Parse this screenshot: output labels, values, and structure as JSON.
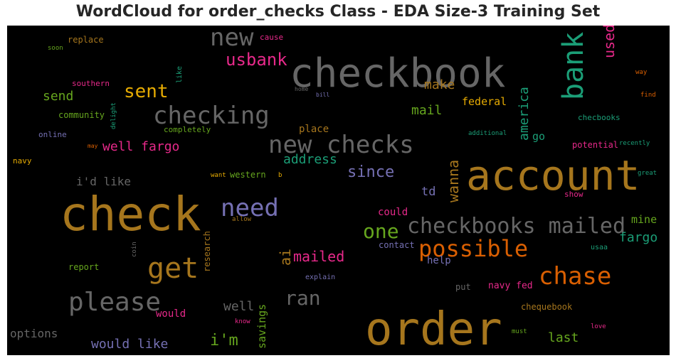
{
  "chart_data": {
    "type": "wordcloud",
    "title": "WordCloud for order_checks Class - EDA Size-3 Training Set",
    "words": [
      {
        "text": "checkbook",
        "color": "#666666"
      },
      {
        "text": "new",
        "color": "#666666"
      },
      {
        "text": "bank",
        "color": "#1b9e77"
      },
      {
        "text": "used",
        "color": "#e7298a"
      },
      {
        "text": "usbank",
        "color": "#e7298a"
      },
      {
        "text": "replace",
        "color": "#a6761d"
      },
      {
        "text": "cause",
        "color": "#e7298a"
      },
      {
        "text": "soon",
        "color": "#66a61e"
      },
      {
        "text": "way",
        "color": "#d95f02"
      },
      {
        "text": "like",
        "color": "#1b9e77"
      },
      {
        "text": "southern",
        "color": "#e7298a"
      },
      {
        "text": "sent",
        "color": "#e6ab02"
      },
      {
        "text": "home",
        "color": "#666666"
      },
      {
        "text": "bill",
        "color": "#7570b3"
      },
      {
        "text": "make",
        "color": "#a6761d"
      },
      {
        "text": "america",
        "color": "#1b9e77"
      },
      {
        "text": "find",
        "color": "#d95f02"
      },
      {
        "text": "send",
        "color": "#66a61e"
      },
      {
        "text": "federal",
        "color": "#e6ab02"
      },
      {
        "text": "checking",
        "color": "#666666"
      },
      {
        "text": "mail",
        "color": "#66a61e"
      },
      {
        "text": "community",
        "color": "#66a61e"
      },
      {
        "text": "delight",
        "color": "#1b9e77"
      },
      {
        "text": "checbooks",
        "color": "#1b9e77"
      },
      {
        "text": "completely",
        "color": "#66a61e"
      },
      {
        "text": "place",
        "color": "#a6761d"
      },
      {
        "text": "online",
        "color": "#7570b3"
      },
      {
        "text": "additional",
        "color": "#1b9e77"
      },
      {
        "text": "go",
        "color": "#1b9e77"
      },
      {
        "text": "new checks",
        "color": "#666666"
      },
      {
        "text": "may",
        "color": "#d95f02"
      },
      {
        "text": "well fargo",
        "color": "#e7298a"
      },
      {
        "text": "potential",
        "color": "#e7298a"
      },
      {
        "text": "recently",
        "color": "#1b9e77"
      },
      {
        "text": "navy",
        "color": "#e6ab02"
      },
      {
        "text": "address",
        "color": "#1b9e77"
      },
      {
        "text": "wanna",
        "color": "#a6761d"
      },
      {
        "text": "account",
        "color": "#a6761d"
      },
      {
        "text": "since",
        "color": "#7570b3"
      },
      {
        "text": "want",
        "color": "#e6ab02"
      },
      {
        "text": "western",
        "color": "#66a61e"
      },
      {
        "text": "b",
        "color": "#e6ab02"
      },
      {
        "text": "great",
        "color": "#1b9e77"
      },
      {
        "text": "i'd like",
        "color": "#666666"
      },
      {
        "text": "td",
        "color": "#7570b3"
      },
      {
        "text": "show",
        "color": "#e7298a"
      },
      {
        "text": "check",
        "color": "#a6761d"
      },
      {
        "text": "need",
        "color": "#7570b3"
      },
      {
        "text": "allow",
        "color": "#a6761d"
      },
      {
        "text": "could",
        "color": "#e7298a"
      },
      {
        "text": "checkbooks mailed",
        "color": "#666666"
      },
      {
        "text": "mine",
        "color": "#66a61e"
      },
      {
        "text": "one",
        "color": "#66a61e"
      },
      {
        "text": "fargo",
        "color": "#1b9e77"
      },
      {
        "text": "research",
        "color": "#a6761d"
      },
      {
        "text": "possible",
        "color": "#d95f02"
      },
      {
        "text": "contact",
        "color": "#7570b3"
      },
      {
        "text": "coin",
        "color": "#666666"
      },
      {
        "text": "get",
        "color": "#a6761d"
      },
      {
        "text": "ai",
        "color": "#a6761d"
      },
      {
        "text": "mailed",
        "color": "#e7298a"
      },
      {
        "text": "usaa",
        "color": "#1b9e77"
      },
      {
        "text": "help",
        "color": "#7570b3"
      },
      {
        "text": "report",
        "color": "#66a61e"
      },
      {
        "text": "chase",
        "color": "#d95f02"
      },
      {
        "text": "explain",
        "color": "#7570b3"
      },
      {
        "text": "put",
        "color": "#666666"
      },
      {
        "text": "navy fed",
        "color": "#e7298a"
      },
      {
        "text": "please",
        "color": "#666666"
      },
      {
        "text": "ran",
        "color": "#666666"
      },
      {
        "text": "chequebook",
        "color": "#a6761d"
      },
      {
        "text": "well",
        "color": "#666666"
      },
      {
        "text": "would",
        "color": "#e7298a"
      },
      {
        "text": "savings",
        "color": "#66a61e"
      },
      {
        "text": "know",
        "color": "#e7298a"
      },
      {
        "text": "order",
        "color": "#a6761d"
      },
      {
        "text": "love",
        "color": "#e7298a"
      },
      {
        "text": "must",
        "color": "#66a61e"
      },
      {
        "text": "options",
        "color": "#666666"
      },
      {
        "text": "i'm",
        "color": "#66a61e"
      },
      {
        "text": "last",
        "color": "#66a61e"
      },
      {
        "text": "would like",
        "color": "#7570b3"
      }
    ]
  }
}
